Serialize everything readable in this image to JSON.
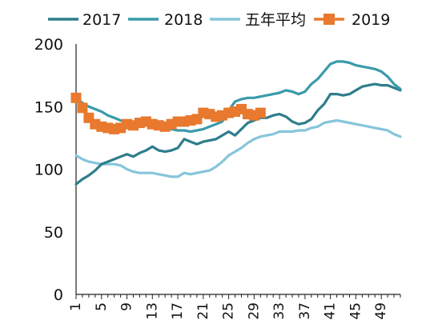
{
  "chart_data": {
    "type": "line",
    "title": "",
    "xlabel": "",
    "ylabel": "",
    "ylim": [
      0,
      200
    ],
    "y_ticks": [
      "0",
      "50",
      "100",
      "150",
      "200"
    ],
    "x_tick_labels": [
      "1",
      "5",
      "9",
      "13",
      "17",
      "21",
      "25",
      "29",
      "33",
      "37",
      "41",
      "45",
      "49"
    ],
    "x_range": [
      1,
      52
    ],
    "grid": false,
    "legend_position": "top",
    "series": [
      {
        "name": "2017",
        "color": "#2e7d8c",
        "marker": "none",
        "x": [
          1,
          2,
          3,
          4,
          5,
          6,
          7,
          8,
          9,
          10,
          11,
          12,
          13,
          14,
          15,
          16,
          17,
          18,
          19,
          20,
          21,
          22,
          23,
          24,
          25,
          26,
          27,
          28,
          29,
          30,
          31,
          32,
          33,
          34,
          35,
          36,
          37,
          38,
          39,
          40,
          41,
          42,
          43,
          44,
          45,
          46,
          47,
          48,
          49,
          50,
          51,
          52
        ],
        "values": [
          88,
          92,
          95,
          99,
          104,
          106,
          108,
          110,
          112,
          110,
          113,
          115,
          118,
          115,
          114,
          115,
          117,
          124,
          122,
          120,
          122,
          123,
          124,
          127,
          130,
          127,
          132,
          137,
          139,
          141,
          141,
          143,
          144,
          142,
          138,
          136,
          137,
          140,
          147,
          152,
          160,
          160,
          159,
          160,
          163,
          166,
          167,
          168,
          167,
          167,
          165,
          163
        ]
      },
      {
        "name": "2018",
        "color": "#3a9aaa",
        "marker": "none",
        "x": [
          1,
          2,
          3,
          4,
          5,
          6,
          7,
          8,
          9,
          10,
          11,
          12,
          13,
          14,
          15,
          16,
          17,
          18,
          19,
          20,
          21,
          22,
          23,
          24,
          25,
          26,
          27,
          28,
          29,
          30,
          31,
          32,
          33,
          34,
          35,
          36,
          37,
          38,
          39,
          40,
          41,
          42,
          43,
          44,
          45,
          46,
          47,
          48,
          49,
          50,
          51,
          52
        ],
        "values": [
          157,
          153,
          150,
          148,
          146,
          143,
          141,
          139,
          137,
          137,
          136,
          135,
          135,
          134,
          133,
          132,
          131,
          131,
          130,
          131,
          132,
          134,
          136,
          138,
          147,
          154,
          156,
          157,
          157,
          158,
          159,
          160,
          161,
          163,
          162,
          160,
          162,
          168,
          172,
          178,
          184,
          186,
          186,
          185,
          183,
          182,
          181,
          180,
          178,
          174,
          168,
          164
        ]
      },
      {
        "name": "五年平均",
        "color": "#86c5da",
        "marker": "none",
        "x": [
          1,
          2,
          3,
          4,
          5,
          6,
          7,
          8,
          9,
          10,
          11,
          12,
          13,
          14,
          15,
          16,
          17,
          18,
          19,
          20,
          21,
          22,
          23,
          24,
          25,
          26,
          27,
          28,
          29,
          30,
          31,
          32,
          33,
          34,
          35,
          36,
          37,
          38,
          39,
          40,
          41,
          42,
          43,
          44,
          45,
          46,
          47,
          48,
          49,
          50,
          51,
          52
        ],
        "values": [
          111,
          108,
          106,
          105,
          104,
          104,
          104,
          103,
          100,
          98,
          97,
          97,
          97,
          96,
          95,
          94,
          94,
          97,
          96,
          97,
          98,
          99,
          102,
          106,
          111,
          114,
          117,
          121,
          124,
          126,
          127,
          128,
          130,
          130,
          130,
          131,
          131,
          133,
          134,
          137,
          138,
          139,
          138,
          137,
          136,
          135,
          134,
          133,
          132,
          131,
          128,
          126
        ]
      },
      {
        "name": "2019",
        "color": "#e8792e",
        "marker": "square",
        "x": [
          1,
          2,
          3,
          4,
          5,
          6,
          7,
          8,
          9,
          10,
          11,
          12,
          13,
          14,
          15,
          16,
          17,
          18,
          19,
          20,
          21,
          22,
          23,
          24,
          25,
          26,
          27,
          28,
          29,
          30
        ],
        "values": [
          157,
          149,
          141,
          136,
          134,
          133,
          132,
          133,
          136,
          135,
          137,
          138,
          136,
          135,
          134,
          136,
          138,
          138,
          139,
          140,
          145,
          144,
          142,
          143,
          145,
          146,
          148,
          144,
          143,
          145
        ]
      }
    ]
  }
}
